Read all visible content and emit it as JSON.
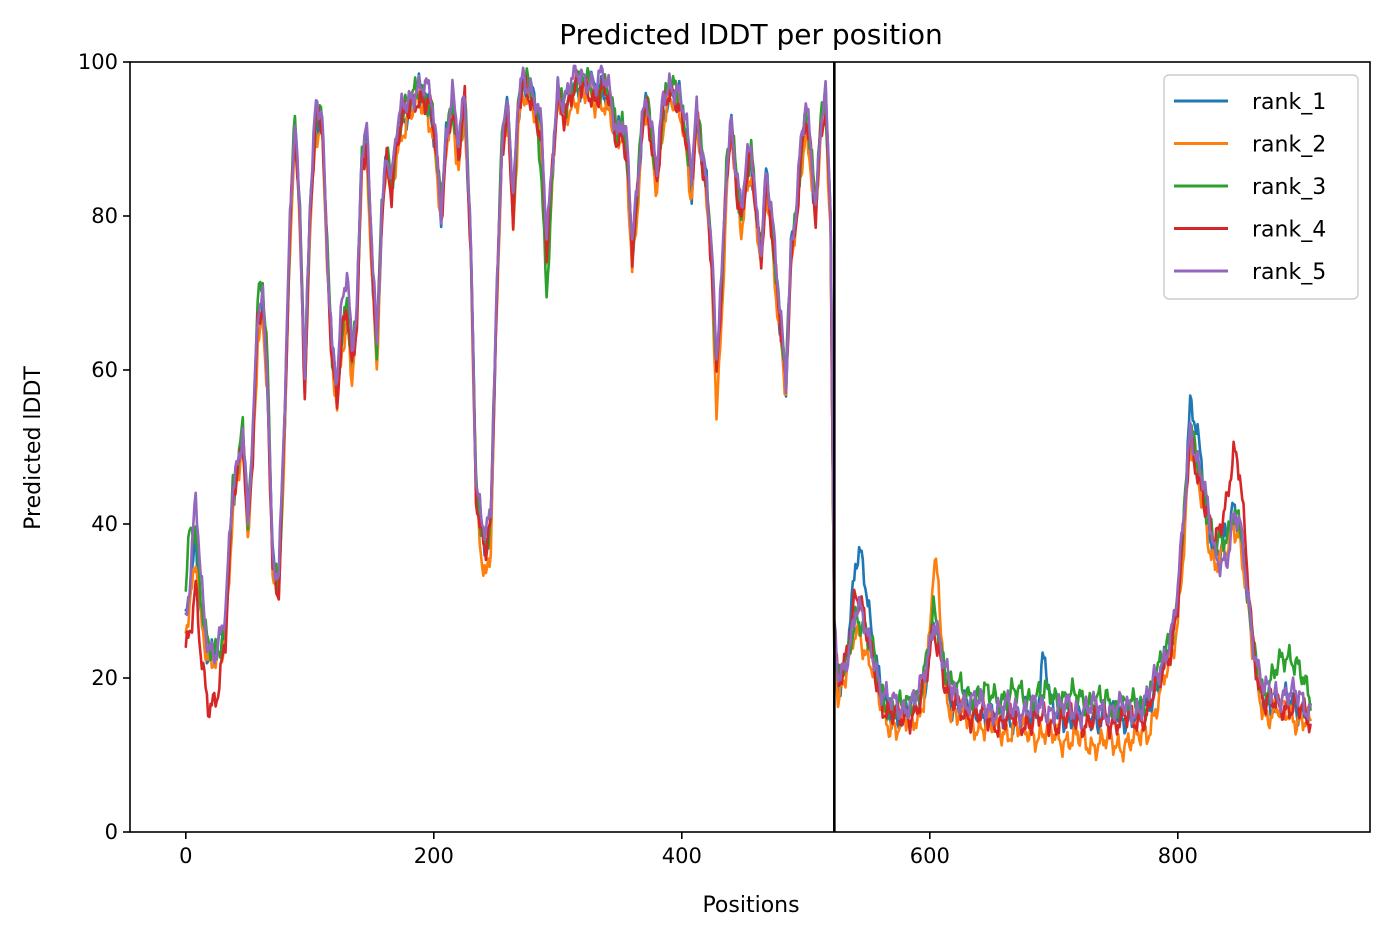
{
  "chart_data": {
    "type": "line",
    "title": "Predicted lDDT per position",
    "xlabel": "Positions",
    "ylabel": "Predicted lDDT",
    "xlim": [
      -45,
      955
    ],
    "ylim": [
      0,
      100
    ],
    "xticks": [
      0,
      200,
      400,
      600,
      800
    ],
    "yticks": [
      0,
      20,
      40,
      60,
      80,
      100
    ],
    "grid": false,
    "legend_position": "top-right",
    "vline_x": 523,
    "vline_color": "#000000",
    "x_max": 907,
    "base_profile": [
      [
        0,
        27
      ],
      [
        5,
        33
      ],
      [
        8,
        38
      ],
      [
        12,
        30
      ],
      [
        18,
        23
      ],
      [
        25,
        23
      ],
      [
        32,
        27
      ],
      [
        38,
        44
      ],
      [
        42,
        47
      ],
      [
        46,
        52
      ],
      [
        50,
        40
      ],
      [
        54,
        50
      ],
      [
        58,
        66
      ],
      [
        62,
        68
      ],
      [
        66,
        58
      ],
      [
        70,
        35
      ],
      [
        75,
        32
      ],
      [
        80,
        55
      ],
      [
        84,
        78
      ],
      [
        88,
        92
      ],
      [
        92,
        80
      ],
      [
        96,
        58
      ],
      [
        100,
        80
      ],
      [
        105,
        93
      ],
      [
        110,
        92
      ],
      [
        114,
        75
      ],
      [
        118,
        62
      ],
      [
        122,
        57
      ],
      [
        126,
        65
      ],
      [
        130,
        68
      ],
      [
        134,
        60
      ],
      [
        138,
        67
      ],
      [
        142,
        88
      ],
      [
        146,
        90
      ],
      [
        150,
        75
      ],
      [
        154,
        62
      ],
      [
        158,
        80
      ],
      [
        162,
        88
      ],
      [
        166,
        84
      ],
      [
        170,
        90
      ],
      [
        175,
        93
      ],
      [
        180,
        94
      ],
      [
        186,
        96
      ],
      [
        192,
        96
      ],
      [
        198,
        94
      ],
      [
        202,
        88
      ],
      [
        206,
        80
      ],
      [
        210,
        90
      ],
      [
        215,
        95
      ],
      [
        220,
        88
      ],
      [
        225,
        95
      ],
      [
        230,
        75
      ],
      [
        234,
        45
      ],
      [
        238,
        40
      ],
      [
        242,
        37
      ],
      [
        246,
        40
      ],
      [
        250,
        65
      ],
      [
        255,
        90
      ],
      [
        260,
        94
      ],
      [
        264,
        80
      ],
      [
        268,
        94
      ],
      [
        272,
        97
      ],
      [
        278,
        96
      ],
      [
        283,
        94
      ],
      [
        287,
        90
      ],
      [
        291,
        75
      ],
      [
        295,
        85
      ],
      [
        300,
        96
      ],
      [
        305,
        94
      ],
      [
        310,
        96
      ],
      [
        315,
        97
      ],
      [
        320,
        97
      ],
      [
        325,
        97
      ],
      [
        330,
        96
      ],
      [
        336,
        97
      ],
      [
        342,
        95
      ],
      [
        348,
        90
      ],
      [
        352,
        92
      ],
      [
        356,
        88
      ],
      [
        360,
        75
      ],
      [
        364,
        82
      ],
      [
        368,
        92
      ],
      [
        372,
        95
      ],
      [
        376,
        90
      ],
      [
        380,
        85
      ],
      [
        385,
        94
      ],
      [
        390,
        96
      ],
      [
        396,
        96
      ],
      [
        400,
        94
      ],
      [
        404,
        90
      ],
      [
        408,
        84
      ],
      [
        412,
        93
      ],
      [
        416,
        88
      ],
      [
        420,
        84
      ],
      [
        424,
        75
      ],
      [
        428,
        60
      ],
      [
        432,
        70
      ],
      [
        436,
        85
      ],
      [
        440,
        92
      ],
      [
        444,
        85
      ],
      [
        448,
        80
      ],
      [
        452,
        85
      ],
      [
        456,
        88
      ],
      [
        460,
        80
      ],
      [
        464,
        75
      ],
      [
        468,
        85
      ],
      [
        472,
        80
      ],
      [
        476,
        72
      ],
      [
        480,
        65
      ],
      [
        484,
        58
      ],
      [
        488,
        75
      ],
      [
        492,
        80
      ],
      [
        496,
        88
      ],
      [
        500,
        93
      ],
      [
        504,
        88
      ],
      [
        508,
        80
      ],
      [
        512,
        92
      ],
      [
        516,
        95
      ],
      [
        520,
        80
      ],
      [
        523,
        25
      ],
      [
        526,
        19
      ],
      [
        530,
        20
      ],
      [
        536,
        24
      ],
      [
        540,
        28
      ],
      [
        545,
        27
      ],
      [
        550,
        24
      ],
      [
        555,
        22
      ],
      [
        560,
        18
      ],
      [
        566,
        16
      ],
      [
        575,
        15
      ],
      [
        585,
        16
      ],
      [
        592,
        17
      ],
      [
        598,
        21
      ],
      [
        603,
        27
      ],
      [
        607,
        25
      ],
      [
        612,
        20
      ],
      [
        618,
        17
      ],
      [
        630,
        16
      ],
      [
        650,
        15
      ],
      [
        670,
        15
      ],
      [
        690,
        15
      ],
      [
        710,
        15
      ],
      [
        730,
        15
      ],
      [
        750,
        15
      ],
      [
        765,
        15
      ],
      [
        775,
        16
      ],
      [
        785,
        20
      ],
      [
        795,
        25
      ],
      [
        800,
        30
      ],
      [
        805,
        40
      ],
      [
        810,
        52
      ],
      [
        815,
        48
      ],
      [
        820,
        45
      ],
      [
        825,
        40
      ],
      [
        830,
        36
      ],
      [
        835,
        37
      ],
      [
        840,
        38
      ],
      [
        845,
        42
      ],
      [
        850,
        40
      ],
      [
        855,
        33
      ],
      [
        860,
        25
      ],
      [
        865,
        20
      ],
      [
        870,
        17
      ],
      [
        880,
        17
      ],
      [
        890,
        17
      ],
      [
        900,
        16
      ],
      [
        907,
        15
      ]
    ],
    "series": [
      {
        "name": "rank_1",
        "color": "#1f77b4",
        "offset": 0,
        "bumps": [
          [
            545,
            9,
            6
          ],
          [
            692,
            8,
            3
          ],
          [
            812,
            4,
            6
          ]
        ]
      },
      {
        "name": "rank_2",
        "color": "#ff7f0e",
        "offset": -1.5,
        "bumps": [
          [
            605,
            9,
            4
          ],
          [
            240,
            -2,
            5
          ],
          [
            430,
            -3,
            4
          ],
          [
            745,
            -2,
            40
          ]
        ]
      },
      {
        "name": "rank_3",
        "color": "#2ca02c",
        "offset": 0.3,
        "bumps": [
          [
            60,
            3,
            5
          ],
          [
            3,
            8,
            3
          ],
          [
            680,
            2.5,
            60
          ],
          [
            890,
            6,
            10
          ],
          [
            290,
            -6,
            4
          ]
        ]
      },
      {
        "name": "rank_4",
        "color": "#d62728",
        "offset": -0.5,
        "bumps": [
          [
            15,
            -7,
            10
          ],
          [
            845,
            8,
            8
          ],
          [
            540,
            4,
            6
          ]
        ]
      },
      {
        "name": "rank_5",
        "color": "#9467bd",
        "offset": 1,
        "bumps": [
          [
            8,
            4,
            3
          ],
          [
            130,
            3,
            5
          ],
          [
            840,
            -3,
            8
          ]
        ]
      }
    ]
  }
}
